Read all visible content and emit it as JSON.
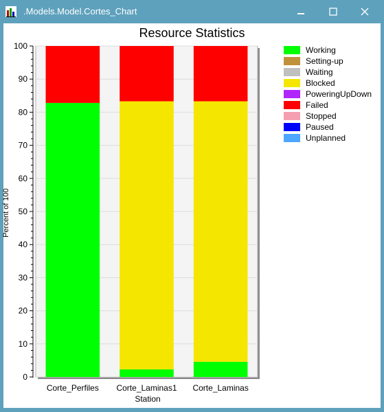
{
  "window": {
    "title": ".Models.Model.Cortes_Chart",
    "app_icon": "bar-chart-icon",
    "controls": [
      "minimize-icon",
      "maximize-icon",
      "close-icon"
    ],
    "titlebar_color": "#5ea1bd"
  },
  "chart_data": {
    "type": "bar",
    "stacked": true,
    "title": "Resource Statistics",
    "xlabel": "Station",
    "ylabel": "Percent of 100",
    "ylim": [
      0,
      100
    ],
    "yticks": [
      0,
      10,
      20,
      30,
      40,
      50,
      60,
      70,
      80,
      90,
      100
    ],
    "grid": true,
    "legend_position": "right",
    "categories": [
      "Corte_Perfiles",
      "Corte_Laminas1",
      "Corte_Laminas"
    ],
    "series": [
      {
        "name": "Working",
        "color": "#00ff00",
        "values": [
          82.8,
          2.3,
          4.6
        ]
      },
      {
        "name": "Setting-up",
        "color": "#c0913c",
        "values": [
          0,
          0,
          0
        ]
      },
      {
        "name": "Waiting",
        "color": "#c0c0c0",
        "values": [
          0,
          0,
          0
        ]
      },
      {
        "name": "Blocked",
        "color": "#f5e600",
        "values": [
          0,
          81.0,
          78.7
        ]
      },
      {
        "name": "PoweringUpDown",
        "color": "#b026ff",
        "values": [
          0,
          0,
          0
        ]
      },
      {
        "name": "Failed",
        "color": "#ff0000",
        "values": [
          17.2,
          16.7,
          16.7
        ]
      },
      {
        "name": "Stopped",
        "color": "#f4a0b0",
        "values": [
          0,
          0,
          0
        ]
      },
      {
        "name": "Paused",
        "color": "#0000ff",
        "values": [
          0,
          0,
          0
        ]
      },
      {
        "name": "Unplanned",
        "color": "#4da6ff",
        "values": [
          0,
          0,
          0
        ]
      }
    ]
  }
}
